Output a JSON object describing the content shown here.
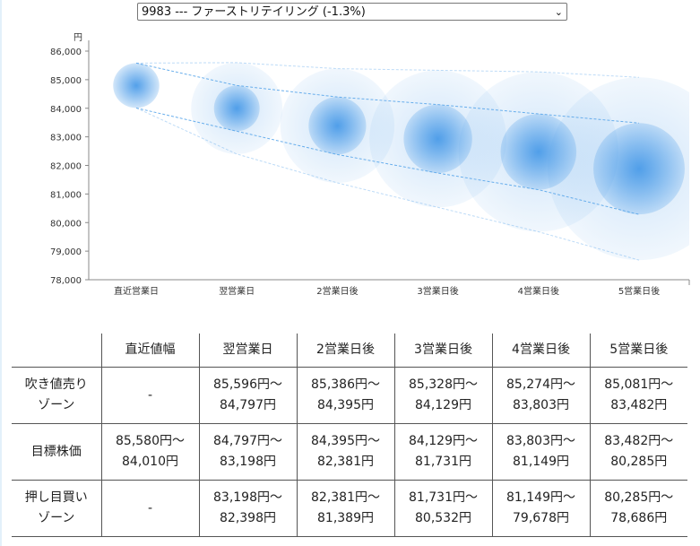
{
  "selector": {
    "value": "9983 --- ファーストリテイリング (-1.3%)"
  },
  "chart_data": {
    "type": "bubble-range",
    "ylabel": "円",
    "ylim": [
      78000,
      86000
    ],
    "yticks": [
      "78,000",
      "79,000",
      "80,000",
      "81,000",
      "82,000",
      "83,000",
      "84,000",
      "85,000",
      "86,000"
    ],
    "categories": [
      "直近営業日",
      "翌営業日",
      "2営業日後",
      "3営業日後",
      "4営業日後",
      "5営業日後"
    ],
    "target_high": [
      85580,
      84797,
      84395,
      84129,
      83803,
      83482
    ],
    "target_low": [
      84010,
      83198,
      82381,
      81731,
      81149,
      80285
    ],
    "outer_high": [
      85580,
      85596,
      85386,
      85328,
      85274,
      85081
    ],
    "outer_low": [
      84010,
      82398,
      81389,
      80532,
      79678,
      78686
    ],
    "colors": {
      "bubble": "#4a9be8",
      "line": "#5aa6ea"
    }
  },
  "table": {
    "headers": [
      "",
      "直近値幅",
      "翌営業日",
      "2営業日後",
      "3営業日後",
      "4営業日後",
      "5営業日後"
    ],
    "rows": [
      {
        "label": [
          "吹き値売り",
          "ゾーン"
        ],
        "cells": [
          [
            "-"
          ],
          [
            "85,596円〜",
            "84,797円"
          ],
          [
            "85,386円〜",
            "84,395円"
          ],
          [
            "85,328円〜",
            "84,129円"
          ],
          [
            "85,274円〜",
            "83,803円"
          ],
          [
            "85,081円〜",
            "83,482円"
          ]
        ]
      },
      {
        "label": [
          "目標株価"
        ],
        "cells": [
          [
            "85,580円〜",
            "84,010円"
          ],
          [
            "84,797円〜",
            "83,198円"
          ],
          [
            "84,395円〜",
            "82,381円"
          ],
          [
            "84,129円〜",
            "81,731円"
          ],
          [
            "83,803円〜",
            "81,149円"
          ],
          [
            "83,482円〜",
            "80,285円"
          ]
        ]
      },
      {
        "label": [
          "押し目買い",
          "ゾーン"
        ],
        "cells": [
          [
            "-"
          ],
          [
            "83,198円〜",
            "82,398円"
          ],
          [
            "82,381円〜",
            "81,389円"
          ],
          [
            "81,731円〜",
            "80,532円"
          ],
          [
            "81,149円〜",
            "79,678円"
          ],
          [
            "80,285円〜",
            "78,686円"
          ]
        ]
      }
    ]
  }
}
